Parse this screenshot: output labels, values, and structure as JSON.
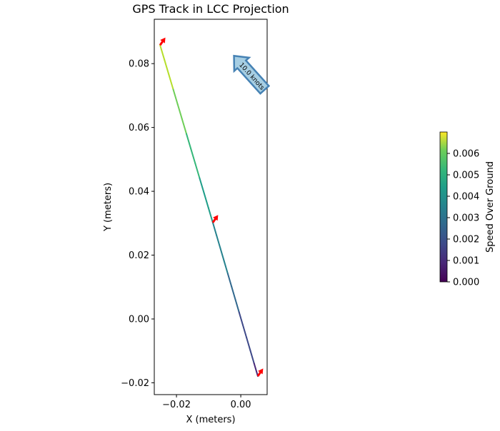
{
  "chart_data": {
    "type": "line",
    "title": "GPS Track in LCC Projection",
    "xlabel": "X (meters)",
    "ylabel": "Y (meters)",
    "xlim": [
      -0.0269,
      0.0082
    ],
    "ylim": [
      -0.0237,
      0.0939
    ],
    "xticks": [
      -0.02,
      0.0
    ],
    "xtick_labels": [
      "−0.02",
      "0.00"
    ],
    "yticks": [
      -0.02,
      0.0,
      0.02,
      0.04,
      0.06,
      0.08
    ],
    "ytick_labels": [
      "−0.02",
      "0.00",
      "0.02",
      "0.04",
      "0.06",
      "0.08"
    ],
    "track": {
      "x": [
        -0.0251,
        -0.0087,
        0.0053
      ],
      "y": [
        0.0858,
        0.0302,
        -0.0179
      ],
      "speed": [
        0.0065,
        0.0035,
        0.001
      ]
    },
    "quiver_points": {
      "x": [
        -0.0251,
        -0.0087,
        0.0053
      ],
      "y": [
        0.0858,
        0.0302,
        -0.0179
      ]
    },
    "quiver_color": "#ff0000",
    "quiver_key_label": "10.0 knots",
    "colorbar": {
      "label": "Speed Over Ground",
      "range": [
        0,
        0.007
      ],
      "ticks": [
        0,
        0.001,
        0.002,
        0.003,
        0.004,
        0.005,
        0.006
      ],
      "tick_labels": [
        "0.000",
        "0.001",
        "0.002",
        "0.003",
        "0.004",
        "0.005",
        "0.006"
      ],
      "colormap": "viridis"
    }
  }
}
